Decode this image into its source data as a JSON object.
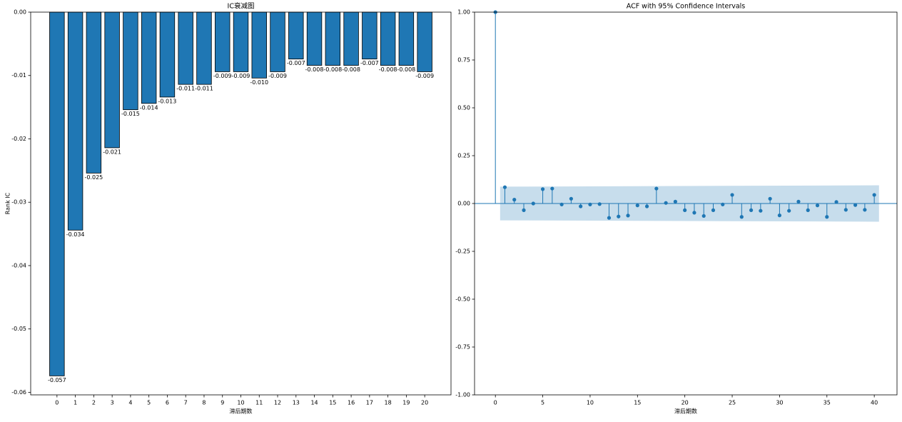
{
  "chart_data": [
    {
      "type": "bar",
      "title": "IC衰减图",
      "x_label": "滞后期数",
      "y_label": "Rank IC",
      "categories": [
        "0",
        "1",
        "2",
        "3",
        "4",
        "5",
        "6",
        "7",
        "8",
        "9",
        "10",
        "11",
        "12",
        "13",
        "14",
        "15",
        "16",
        "17",
        "18",
        "19",
        "20"
      ],
      "values": [
        -0.0574,
        -0.0344,
        -0.0254,
        -0.0214,
        -0.0154,
        -0.0144,
        -0.0134,
        -0.0114,
        -0.0114,
        -0.0094,
        -0.0094,
        -0.0104,
        -0.0094,
        -0.0074,
        -0.0084,
        -0.0084,
        -0.0084,
        -0.0074,
        -0.0084,
        -0.0084,
        -0.0094
      ],
      "value_labels": [
        "-0.057",
        "-0.034",
        "-0.025",
        "-0.021",
        "-0.015",
        "-0.014",
        "-0.013",
        "-0.011",
        "-0.011",
        "-0.009",
        "-0.009",
        "-0.010",
        "-0.009",
        "-0.007",
        "-0.008",
        "-0.008",
        "-0.008",
        "-0.007",
        "-0.008",
        "-0.008",
        "-0.009"
      ],
      "color": "#1f77b4",
      "ylim": [
        -0.0604,
        0
      ],
      "yticks": [
        {
          "value": 0,
          "label": "0.00"
        },
        {
          "value": -0.01,
          "label": "-0.01"
        },
        {
          "value": -0.02,
          "label": "-0.02"
        },
        {
          "value": -0.03,
          "label": "-0.03"
        },
        {
          "value": -0.04,
          "label": "-0.04"
        },
        {
          "value": -0.05,
          "label": "-0.05"
        },
        {
          "value": -0.06,
          "label": "-0.06"
        }
      ]
    },
    {
      "type": "stem",
      "title": "ACF with 95% Confidence Intervals",
      "x_label": "滞后期数",
      "x": [
        0,
        1,
        2,
        3,
        4,
        5,
        6,
        7,
        8,
        9,
        10,
        11,
        12,
        13,
        14,
        15,
        16,
        17,
        18,
        19,
        20,
        21,
        22,
        23,
        24,
        25,
        26,
        27,
        28,
        29,
        30,
        31,
        32,
        33,
        34,
        35,
        36,
        37,
        38,
        39,
        40
      ],
      "values": [
        1,
        0.085,
        0.02,
        -0.035,
        0,
        0.075,
        0.078,
        -0.005,
        0.025,
        -0.015,
        -0.005,
        -0.003,
        -0.075,
        -0.068,
        -0.063,
        -0.01,
        -0.015,
        0.078,
        0.003,
        0.01,
        -0.035,
        -0.048,
        -0.065,
        -0.035,
        -0.005,
        0.045,
        -0.07,
        -0.035,
        -0.038,
        0.025,
        -0.062,
        -0.038,
        0.01,
        -0.035,
        -0.01,
        -0.07,
        0.008,
        -0.033,
        -0.008,
        -0.033,
        0.045
      ],
      "color": "#1f77b4",
      "band": {
        "x": [
          0.5,
          40.5
        ],
        "upper": [
          0.088,
          0.095
        ],
        "lower": [
          -0.088,
          -0.095
        ]
      },
      "xlim": [
        -2.2,
        42.4
      ],
      "xticks": [
        0,
        5,
        10,
        15,
        20,
        25,
        30,
        35,
        40
      ],
      "ylim": [
        -1,
        1
      ],
      "yticks": [
        {
          "value": -1,
          "label": "-1.00"
        },
        {
          "value": -0.75,
          "label": "-0.75"
        },
        {
          "value": -0.5,
          "label": "-0.50"
        },
        {
          "value": -0.25,
          "label": "-0.25"
        },
        {
          "value": 0,
          "label": "0.00"
        },
        {
          "value": 0.25,
          "label": "0.25"
        },
        {
          "value": 0.5,
          "label": "0.50"
        },
        {
          "value": 0.75,
          "label": "0.75"
        },
        {
          "value": 1,
          "label": "1.00"
        }
      ]
    }
  ]
}
